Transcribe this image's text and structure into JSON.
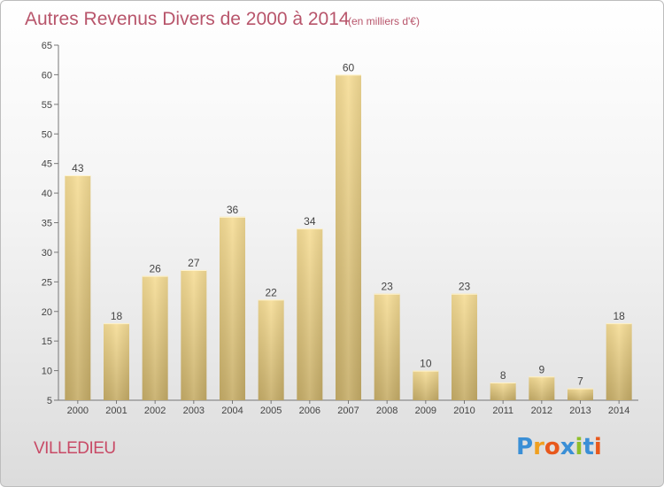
{
  "title": {
    "main": "Autres Revenus Divers de 2000 à 2014",
    "unit": "(en milliers d'€)"
  },
  "location": "VILLEDIEU",
  "brand": {
    "letters": [
      {
        "ch": "P",
        "color": "#3a8fd6"
      },
      {
        "ch": "r",
        "color": "#f0a020"
      },
      {
        "ch": "o",
        "color": "#e8581c"
      },
      {
        "ch": "x",
        "color": "#3a8fd6"
      },
      {
        "ch": "i",
        "color": "#8fbf2a"
      },
      {
        "ch": "t",
        "color": "#3a8fd6"
      },
      {
        "ch": "i",
        "color": "#e8581c"
      }
    ]
  },
  "colors": {
    "title": "#b8556b",
    "bar_light": "#f6dd96",
    "bar_dark": "#c6ad68",
    "axis": "#777777"
  },
  "chart_data": {
    "type": "bar",
    "categories": [
      "2000",
      "2001",
      "2002",
      "2003",
      "2004",
      "2005",
      "2006",
      "2007",
      "2008",
      "2009",
      "2010",
      "2011",
      "2012",
      "2013",
      "2014"
    ],
    "values": [
      43,
      18,
      26,
      27,
      36,
      22,
      34,
      60,
      23,
      10,
      23,
      8,
      9,
      7,
      18
    ],
    "ylim": [
      5,
      65
    ],
    "yticks": [
      5,
      10,
      15,
      20,
      25,
      30,
      35,
      40,
      45,
      50,
      55,
      60,
      65
    ],
    "grid": false
  }
}
